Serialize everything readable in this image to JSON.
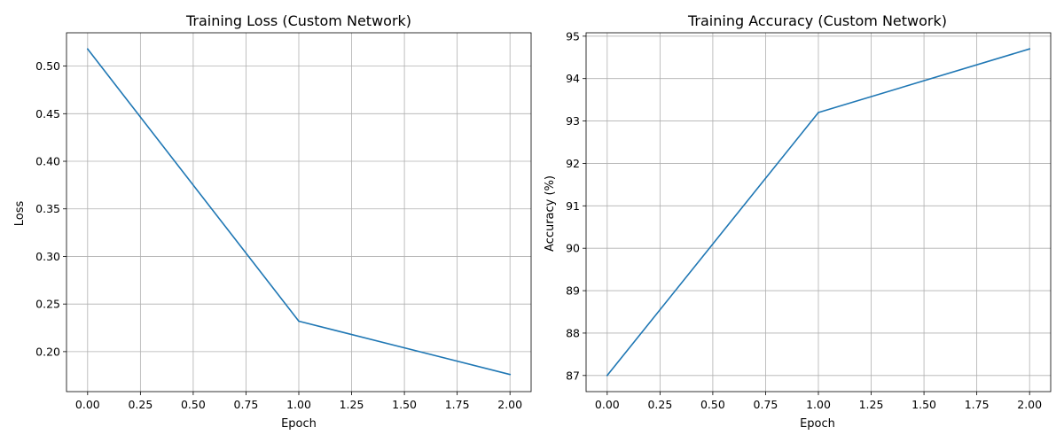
{
  "chart_data": [
    {
      "type": "line",
      "title": "Training Loss (Custom Network)",
      "xlabel": "Epoch",
      "ylabel": "Loss",
      "grid": true,
      "legend": "none",
      "color": "#1f77b4",
      "xlim": [
        -0.1,
        2.1
      ],
      "ylim": [
        0.158,
        0.535
      ],
      "xticks": [
        0.0,
        0.25,
        0.5,
        0.75,
        1.0,
        1.25,
        1.5,
        1.75,
        2.0
      ],
      "xtick_labels": [
        "0.00",
        "0.25",
        "0.50",
        "0.75",
        "1.00",
        "1.25",
        "1.50",
        "1.75",
        "2.00"
      ],
      "yticks": [
        0.2,
        0.25,
        0.3,
        0.35,
        0.4,
        0.45,
        0.5
      ],
      "ytick_labels": [
        "0.20",
        "0.25",
        "0.30",
        "0.35",
        "0.40",
        "0.45",
        "0.50"
      ],
      "x": [
        0,
        1,
        2
      ],
      "y": [
        0.518,
        0.232,
        0.176
      ]
    },
    {
      "type": "line",
      "title": "Training Accuracy (Custom Network)",
      "xlabel": "Epoch",
      "ylabel": "Accuracy (%)",
      "grid": true,
      "legend": "none",
      "color": "#1f77b4",
      "xlim": [
        -0.1,
        2.1
      ],
      "ylim": [
        86.62,
        95.08
      ],
      "xticks": [
        0.0,
        0.25,
        0.5,
        0.75,
        1.0,
        1.25,
        1.5,
        1.75,
        2.0
      ],
      "xtick_labels": [
        "0.00",
        "0.25",
        "0.50",
        "0.75",
        "1.00",
        "1.25",
        "1.50",
        "1.75",
        "2.00"
      ],
      "yticks": [
        87,
        88,
        89,
        90,
        91,
        92,
        93,
        94,
        95
      ],
      "ytick_labels": [
        "87",
        "88",
        "89",
        "90",
        "91",
        "92",
        "93",
        "94",
        "95"
      ],
      "x": [
        0,
        1,
        2
      ],
      "y": [
        87.0,
        93.2,
        94.7
      ]
    }
  ]
}
